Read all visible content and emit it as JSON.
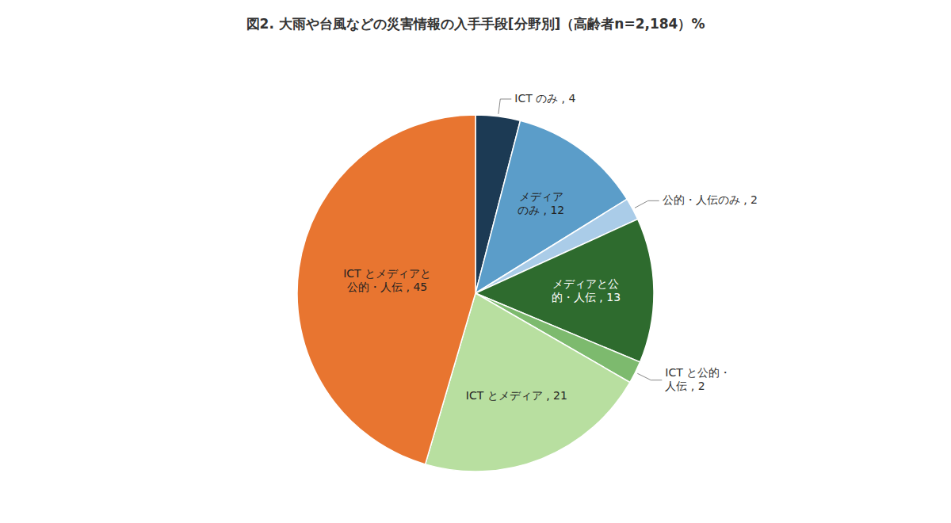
{
  "chart_data": {
    "type": "pie",
    "title": "図2. 大雨や台風などの災害情報の入手手段[分野別]（高齢者n=2,184）%",
    "values": [
      4,
      12,
      2,
      13,
      2,
      21,
      45
    ],
    "value_labels": [
      "ICT のみ , 4",
      "メディア\nのみ , 12",
      "公的・人伝のみ , 2",
      "メディアと公\n的・人伝 , 13",
      "ICT と公的・\n人伝 , 2",
      "ICT とメディア , 21",
      "ICT とメディアと\n公的・人伝 , 45"
    ],
    "colors": [
      "#1c3a54",
      "#5b9dc9",
      "#aacce8",
      "#2e6b2e",
      "#7dba6e",
      "#b8dfa0",
      "#e87530"
    ],
    "data_labels": true
  }
}
